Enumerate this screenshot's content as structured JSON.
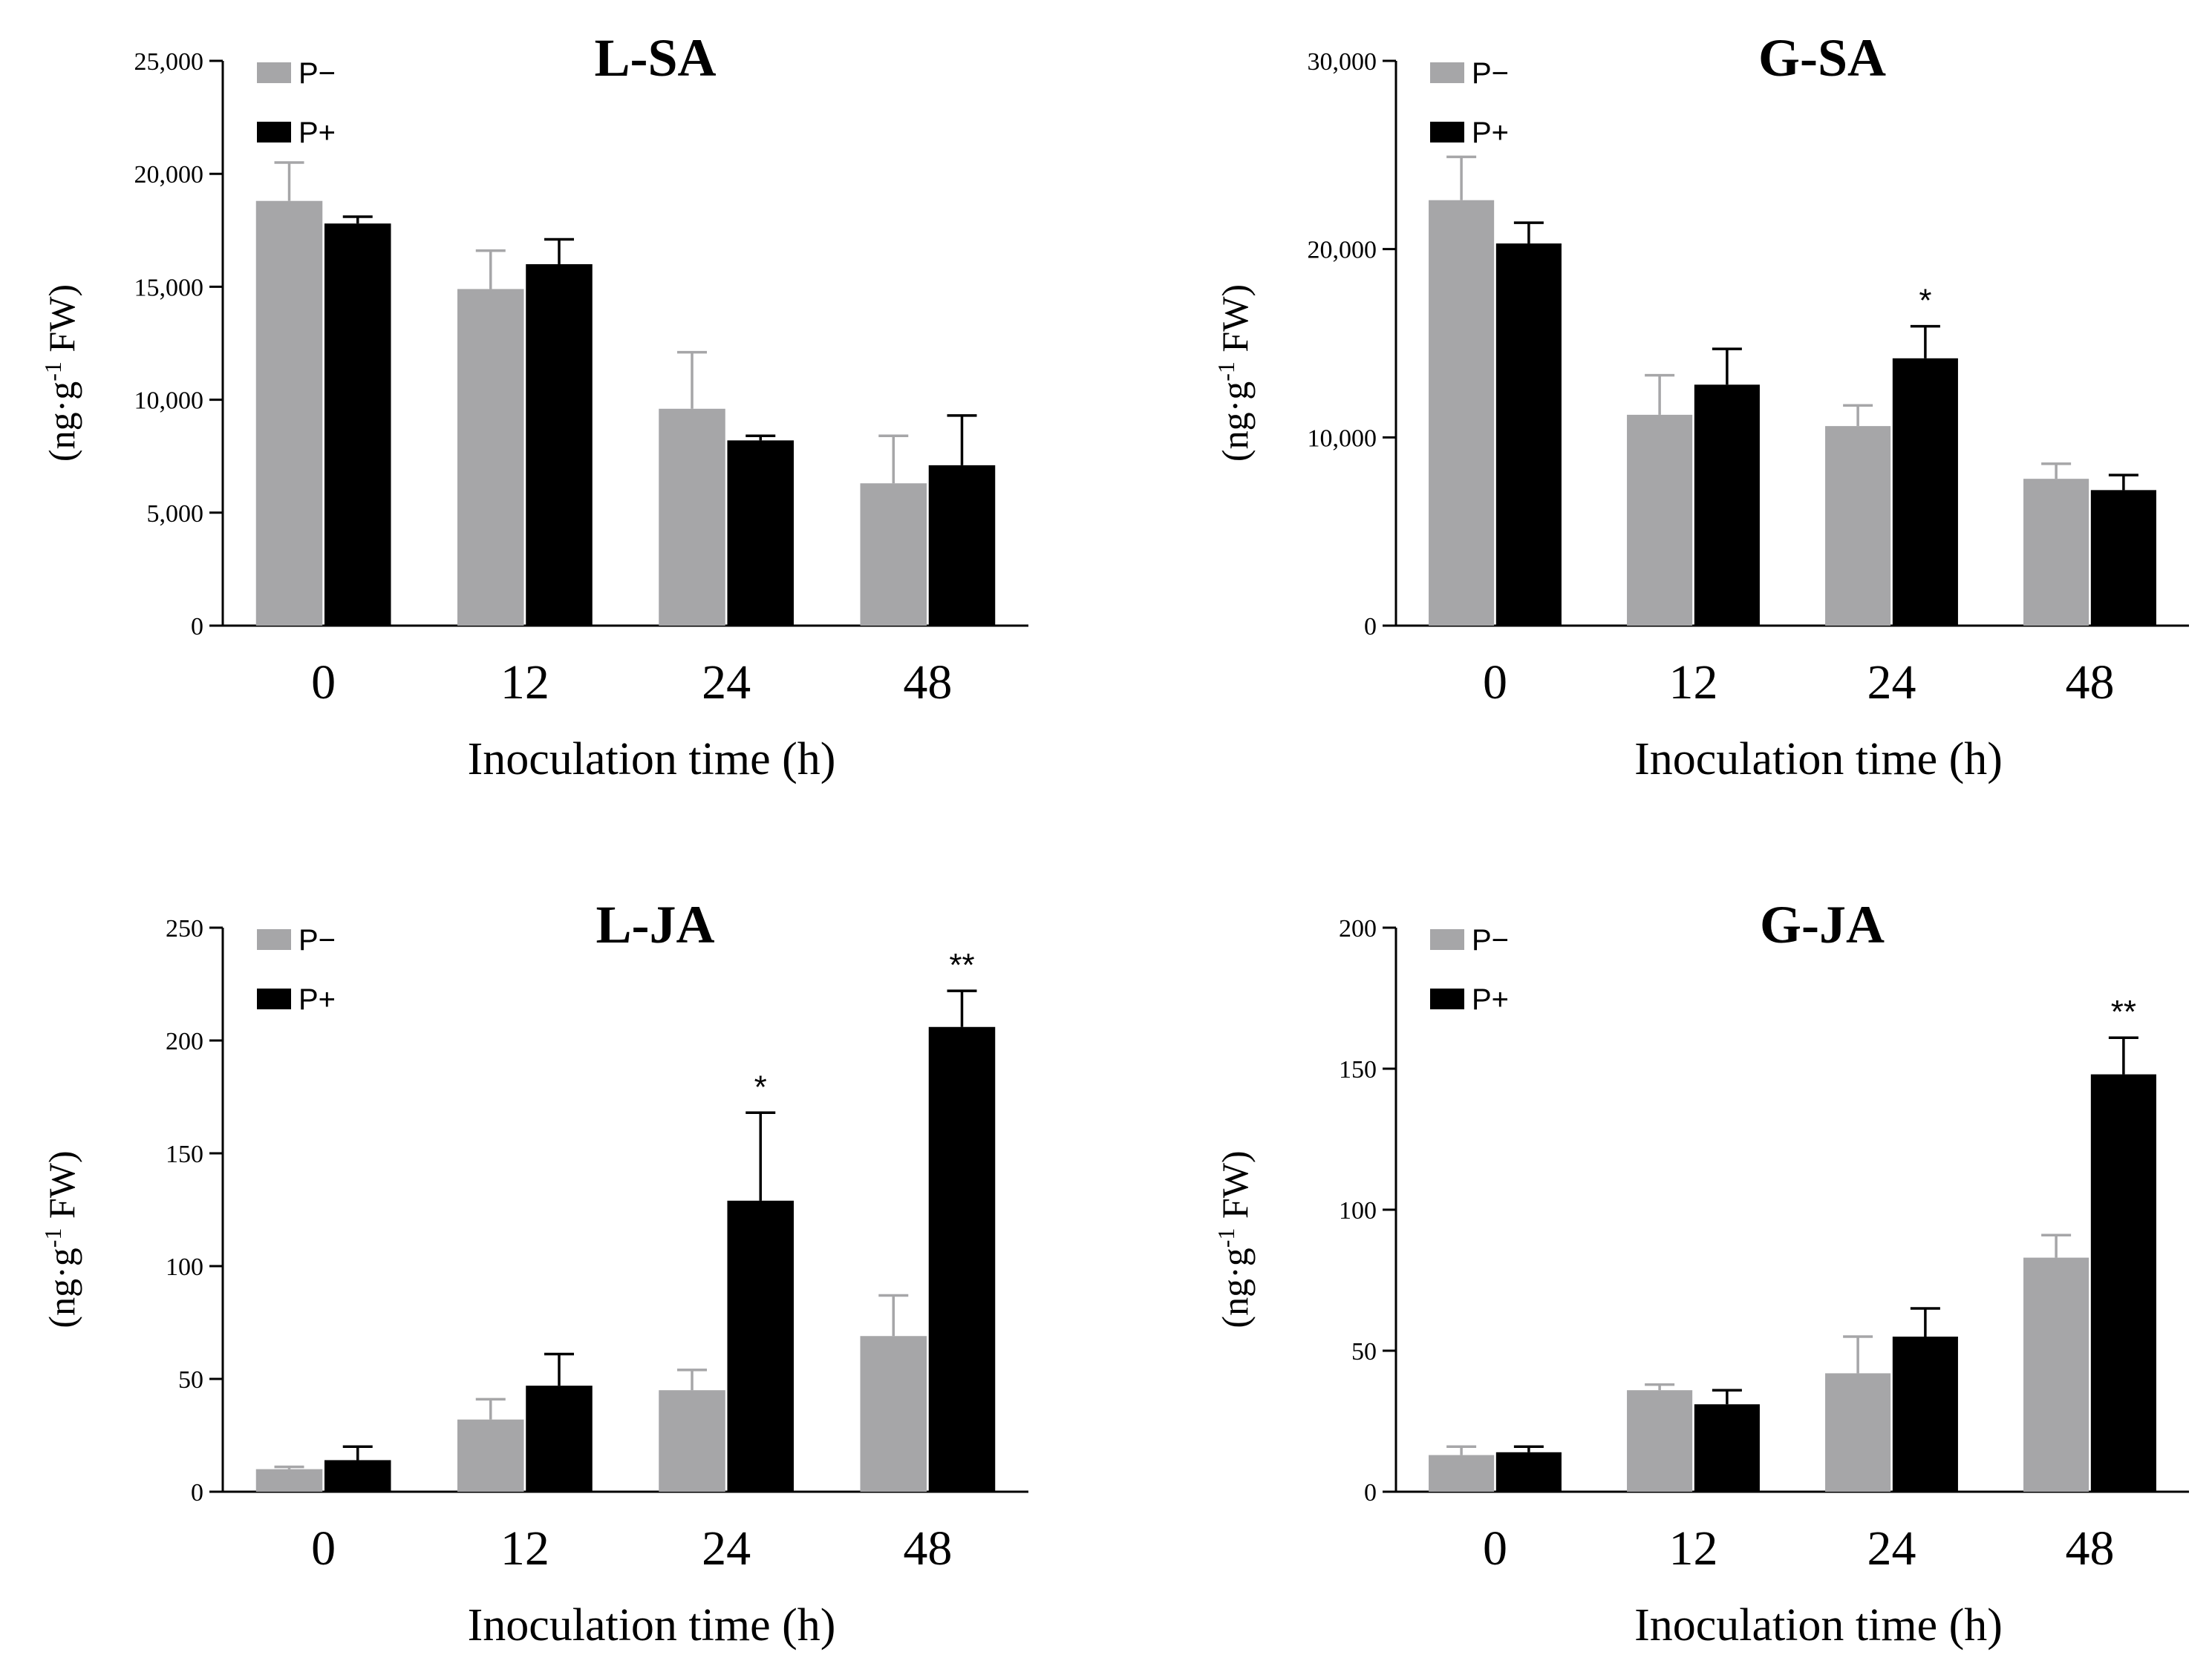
{
  "colors": {
    "p_minus": "#a6a6a8",
    "p_plus": "#000000",
    "axis": "#000000"
  },
  "chart_data": [
    {
      "id": "lsa",
      "type": "bar",
      "title": "L-SA",
      "xlabel": "Inoculation time (h)",
      "ylabel": {
        "pre": "(ng·g",
        "sup": "-1",
        "post": " FW)"
      },
      "categories": [
        "0",
        "12",
        "24",
        "48"
      ],
      "ylim": [
        0,
        25000
      ],
      "yticks": [
        0,
        5000,
        10000,
        15000,
        20000,
        25000
      ],
      "ytick_labels": [
        "0",
        "5,000",
        "10,000",
        "15,000",
        "20,000",
        "25,000"
      ],
      "legend": [
        "P−",
        "P+"
      ],
      "series": [
        {
          "name": "P−",
          "values": [
            18800,
            14900,
            9600,
            6300
          ],
          "errors": [
            1700,
            1700,
            2500,
            2100
          ]
        },
        {
          "name": "P+",
          "values": [
            17800,
            16000,
            8200,
            7100
          ],
          "errors": [
            300,
            1100,
            200,
            2200
          ]
        }
      ],
      "significance": [
        {
          "series": 1,
          "index": 0,
          "label": ""
        },
        {
          "series": 1,
          "index": 1,
          "label": ""
        },
        {
          "series": 1,
          "index": 2,
          "label": ""
        },
        {
          "series": 1,
          "index": 3,
          "label": ""
        }
      ]
    },
    {
      "id": "gsa",
      "type": "bar",
      "title": "G-SA",
      "xlabel": "Inoculation time (h)",
      "ylabel": {
        "pre": "(ng·g",
        "sup": "-1",
        "post": " FW)"
      },
      "categories": [
        "0",
        "12",
        "24",
        "48"
      ],
      "ylim": [
        0,
        30000
      ],
      "yticks": [
        0,
        10000,
        20000,
        30000
      ],
      "ytick_labels": [
        "0",
        "10,000",
        "20,000",
        "30,000"
      ],
      "legend": [
        "P−",
        "P+"
      ],
      "series": [
        {
          "name": "P−",
          "values": [
            22600,
            11200,
            10600,
            7800
          ],
          "errors": [
            2300,
            2100,
            1100,
            800
          ]
        },
        {
          "name": "P+",
          "values": [
            20300,
            12800,
            14200,
            7200
          ],
          "errors": [
            1100,
            1900,
            1700,
            800
          ]
        }
      ],
      "significance": [
        {
          "series": 1,
          "index": 0,
          "label": ""
        },
        {
          "series": 1,
          "index": 1,
          "label": ""
        },
        {
          "series": 1,
          "index": 2,
          "label": "*"
        },
        {
          "series": 1,
          "index": 3,
          "label": ""
        }
      ]
    },
    {
      "id": "lja",
      "type": "bar",
      "title": "L-JA",
      "xlabel": "Inoculation time (h)",
      "ylabel": {
        "pre": "(ng·g",
        "sup": "-1",
        "post": " FW)"
      },
      "categories": [
        "0",
        "12",
        "24",
        "48"
      ],
      "ylim": [
        0,
        250
      ],
      "yticks": [
        0,
        50,
        100,
        150,
        200,
        250
      ],
      "ytick_labels": [
        "0",
        "50",
        "100",
        "150",
        "200",
        "250"
      ],
      "legend": [
        "P−",
        "P+"
      ],
      "series": [
        {
          "name": "P−",
          "values": [
            10,
            32,
            45,
            69
          ],
          "errors": [
            1,
            9,
            9,
            18
          ]
        },
        {
          "name": "P+",
          "values": [
            14,
            47,
            129,
            206
          ],
          "errors": [
            6,
            14,
            39,
            16
          ]
        }
      ],
      "significance": [
        {
          "series": 1,
          "index": 0,
          "label": ""
        },
        {
          "series": 1,
          "index": 1,
          "label": ""
        },
        {
          "series": 1,
          "index": 2,
          "label": "*"
        },
        {
          "series": 1,
          "index": 3,
          "label": "**"
        }
      ]
    },
    {
      "id": "gja",
      "type": "bar",
      "title": "G-JA",
      "xlabel": "Inoculation time (h)",
      "ylabel": {
        "pre": "(ng·g",
        "sup": "-1",
        "post": " FW)"
      },
      "categories": [
        "0",
        "12",
        "24",
        "48"
      ],
      "ylim": [
        0,
        200
      ],
      "yticks": [
        0,
        50,
        100,
        150,
        200
      ],
      "ytick_labels": [
        "0",
        "50",
        "100",
        "150",
        "200"
      ],
      "legend": [
        "P−",
        "P+"
      ],
      "series": [
        {
          "name": "P−",
          "values": [
            13,
            36,
            42,
            83
          ],
          "errors": [
            3,
            2,
            13,
            8
          ]
        },
        {
          "name": "P+",
          "values": [
            14,
            31,
            55,
            148
          ],
          "errors": [
            2,
            5,
            10,
            13
          ]
        }
      ],
      "significance": [
        {
          "series": 1,
          "index": 0,
          "label": ""
        },
        {
          "series": 1,
          "index": 1,
          "label": ""
        },
        {
          "series": 1,
          "index": 2,
          "label": ""
        },
        {
          "series": 1,
          "index": 3,
          "label": "**"
        }
      ]
    }
  ]
}
